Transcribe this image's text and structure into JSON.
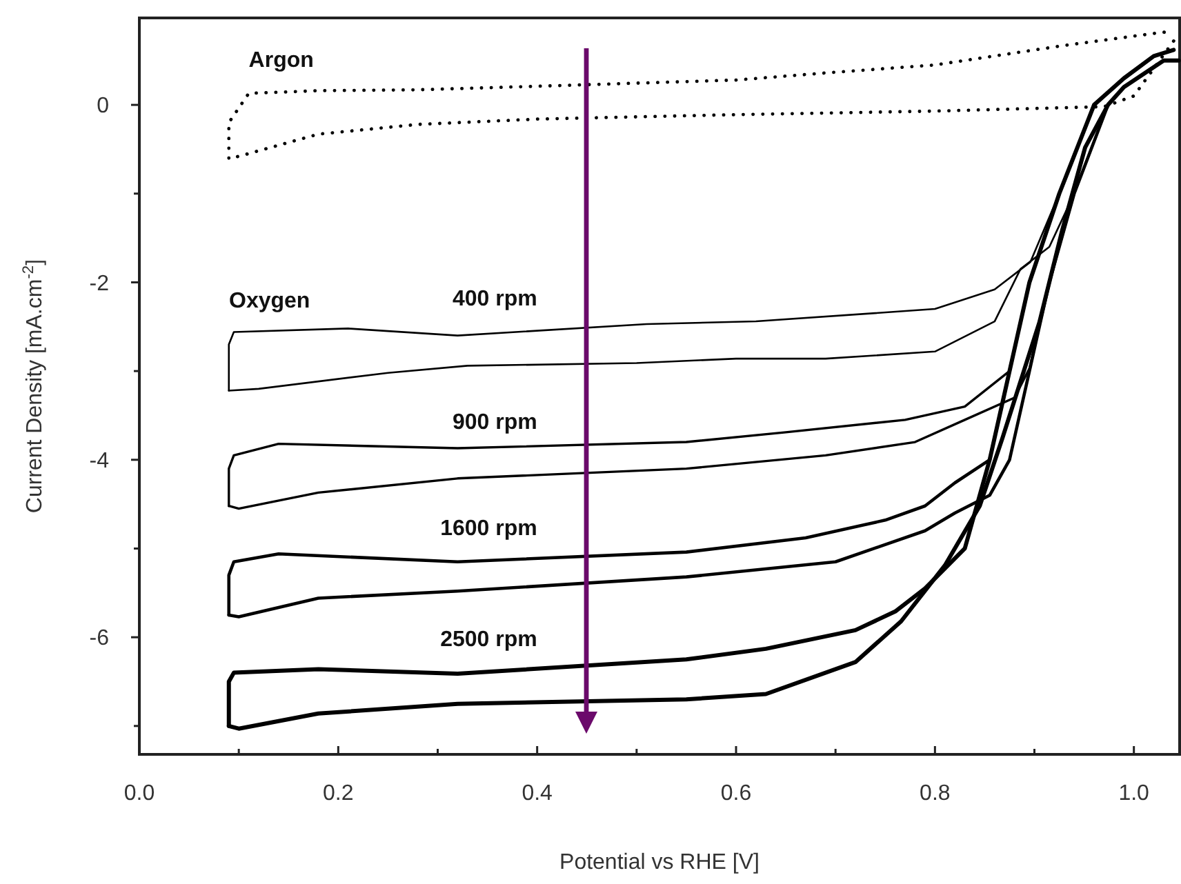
{
  "chart_data": {
    "type": "line",
    "xlabel": "Potential vs RHE [V]",
    "ylabel": "Current Density [mA.cm$^{-2}$]",
    "xlim": [
      0,
      1.046
    ],
    "ylim": [
      -7.32,
      0.98
    ],
    "xticks": [
      {
        "value": 0,
        "label": "0.0"
      },
      {
        "value": 0.1,
        "label": null
      },
      {
        "value": 0.2,
        "label": "0.2"
      },
      {
        "value": 0.3,
        "label": null
      },
      {
        "value": 0.4,
        "label": "0.4"
      },
      {
        "value": 0.5,
        "label": null
      },
      {
        "value": 0.6,
        "label": "0.6"
      },
      {
        "value": 0.7,
        "label": null
      },
      {
        "value": 0.8,
        "label": "0.8"
      },
      {
        "value": 0.9,
        "label": null
      },
      {
        "value": 1,
        "label": "1.0"
      }
    ],
    "yticks": [
      {
        "value": -7,
        "label": null
      },
      -6,
      {
        "value": -5,
        "label": null
      },
      -4,
      {
        "value": -3,
        "label": null
      },
      -2,
      {
        "value": -1,
        "label": null
      },
      0
    ],
    "grid": false,
    "legend": false,
    "marker": "none",
    "annotations": [
      "Oxygen"
    ],
    "series": [
      {
        "name": "Argon",
        "color": "#000000",
        "line_style": "dotted",
        "x": [
          0.09,
          0.09,
          0.11,
          0.18,
          0.28,
          0.4,
          0.6,
          0.69,
          0.8,
          0.93,
          1.03,
          1.04
        ],
        "values": [
          -0.6,
          -0.2,
          0.13,
          0.16,
          0.17,
          0.21,
          0.28,
          0.36,
          0.45,
          0.67,
          0.82,
          0.8
        ]
      },
      {
        "color": "#000000",
        "line_style": "dotted",
        "x": [
          1.04,
          1.0,
          0.97,
          0.8,
          0.6,
          0.4,
          0.28,
          0.18,
          0.1,
          0.09
        ],
        "values": [
          0.72,
          0.1,
          -0.02,
          -0.07,
          -0.11,
          -0.16,
          -0.22,
          -0.33,
          -0.58,
          -0.6
        ]
      },
      {
        "name": "400 rpm",
        "color": "#000000",
        "line_style": "solid",
        "x": [
          0.09,
          0.09,
          0.095,
          0.21,
          0.32,
          0.51,
          0.62,
          0.8,
          0.86,
          0.896,
          0.925,
          0.96,
          0.99,
          1.02,
          1.04
        ],
        "values": [
          -3.22,
          -2.7,
          -2.56,
          -2.52,
          -2.6,
          -2.47,
          -2.44,
          -2.3,
          -2.08,
          -1.77,
          -1.0,
          0,
          0.3,
          0.55,
          0.62
        ]
      },
      {
        "color": "#000000",
        "line_style": "solid",
        "x": [
          1.045,
          1.03,
          0.99,
          0.974,
          0.94,
          0.915,
          0.886,
          0.86,
          0.8,
          0.69,
          0.6,
          0.5,
          0.33,
          0.25,
          0.12,
          0.09
        ],
        "values": [
          0.5,
          0.5,
          0.2,
          0,
          -1,
          -1.6,
          -1.85,
          -2.44,
          -2.78,
          -2.86,
          -2.86,
          -2.91,
          -2.94,
          -3.02,
          -3.2,
          -3.22
        ]
      },
      {
        "name": "900 rpm",
        "color": "#000000",
        "line_style": "solid",
        "x": [
          0.09,
          0.09,
          0.095,
          0.14,
          0.32,
          0.55,
          0.65,
          0.77,
          0.83,
          0.875,
          0.895,
          0.925,
          0.96,
          0.99,
          1.02,
          1.04
        ],
        "values": [
          -4.52,
          -4.1,
          -3.95,
          -3.82,
          -3.87,
          -3.8,
          -3.69,
          -3.55,
          -3.4,
          -3.0,
          -2,
          -1,
          0,
          0.3,
          0.55,
          0.62
        ]
      },
      {
        "color": "#000000",
        "line_style": "solid",
        "x": [
          1.045,
          1.03,
          0.99,
          0.974,
          0.94,
          0.915,
          0.895,
          0.88,
          0.83,
          0.78,
          0.69,
          0.55,
          0.32,
          0.18,
          0.1,
          0.09
        ],
        "values": [
          0.5,
          0.5,
          0.2,
          0,
          -1,
          -2,
          -2.97,
          -3.3,
          -3.55,
          -3.8,
          -3.95,
          -4.1,
          -4.21,
          -4.37,
          -4.55,
          -4.52
        ]
      },
      {
        "name": "1600 rpm",
        "color": "#000000",
        "line_style": "solid",
        "x": [
          0.09,
          0.09,
          0.095,
          0.14,
          0.32,
          0.55,
          0.67,
          0.75,
          0.79,
          0.82,
          0.855,
          0.875,
          0.895,
          0.925,
          0.96,
          0.99,
          1.02,
          1.04
        ],
        "values": [
          -5.75,
          -5.3,
          -5.15,
          -5.06,
          -5.15,
          -5.04,
          -4.88,
          -4.68,
          -4.52,
          -4.26,
          -4,
          -3,
          -2,
          -1,
          0,
          0.3,
          0.55,
          0.62
        ]
      },
      {
        "color": "#000000",
        "line_style": "solid",
        "x": [
          1.045,
          1.03,
          0.99,
          0.974,
          0.94,
          0.915,
          0.895,
          0.875,
          0.855,
          0.82,
          0.79,
          0.7,
          0.55,
          0.32,
          0.18,
          0.1,
          0.09
        ],
        "values": [
          0.5,
          0.5,
          0.2,
          0,
          -1,
          -2,
          -3,
          -4,
          -4.4,
          -4.6,
          -4.8,
          -5.15,
          -5.32,
          -5.48,
          -5.56,
          -5.77,
          -5.75
        ]
      },
      {
        "name": "2500 rpm",
        "color": "#000000",
        "line_style": "solid",
        "x": [
          0.09,
          0.09,
          0.095,
          0.18,
          0.32,
          0.55,
          0.63,
          0.72,
          0.76,
          0.79,
          0.83,
          0.855,
          0.875,
          0.895,
          0.925,
          0.96,
          0.99,
          1.02,
          1.04
        ],
        "values": [
          -7.0,
          -6.5,
          -6.4,
          -6.36,
          -6.41,
          -6.25,
          -6.13,
          -5.92,
          -5.71,
          -5.45,
          -5,
          -4,
          -3,
          -2,
          -1,
          0,
          0.3,
          0.55,
          0.62
        ]
      },
      {
        "color": "#000000",
        "line_style": "solid",
        "x": [
          1.045,
          1.03,
          0.99,
          0.974,
          0.951,
          0.928,
          0.905,
          0.868,
          0.845,
          0.81,
          0.766,
          0.72,
          0.63,
          0.55,
          0.32,
          0.18,
          0.1,
          0.09
        ],
        "values": [
          0.5,
          0.5,
          0.2,
          0,
          -0.48,
          -1.41,
          -2.45,
          -3.75,
          -4.52,
          -5.19,
          -5.82,
          -6.28,
          -6.64,
          -6.7,
          -6.75,
          -6.86,
          -7.03,
          -7.0
        ]
      }
    ]
  }
}
